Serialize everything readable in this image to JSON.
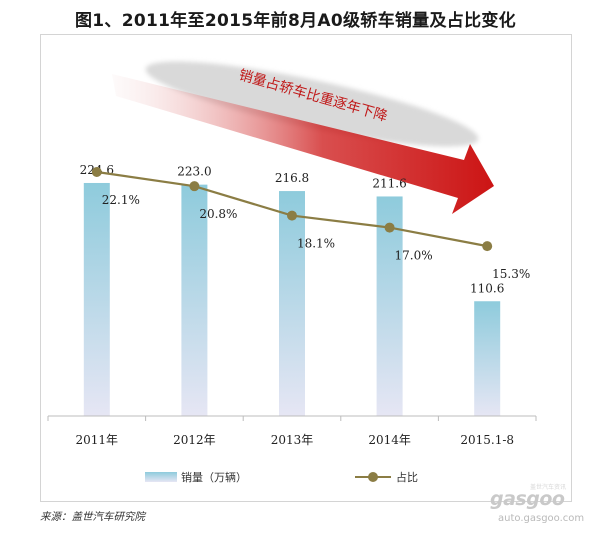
{
  "title": "图1、2011年至2015年前8月A0级轿车销量及占比变化",
  "source": "来源：盖世汽车研究院",
  "watermark": {
    "brand": "gasgoo",
    "url": "auto.gasgoo.com",
    "cn": "盖世汽车资讯"
  },
  "colors": {
    "bar_top": "#8ecbdc",
    "bar_bottom": "#e6e6f4",
    "line": "#8b7d44",
    "arrow_start": "#f4dede",
    "arrow_end": "#cc1414",
    "ellipse": "#d9d9d9"
  },
  "chart_data": {
    "type": "bar+line",
    "categories": [
      "2011年",
      "2012年",
      "2013年",
      "2014年",
      "2015.1-8"
    ],
    "series": [
      {
        "name": "销量（万辆）",
        "type": "bar",
        "values": [
          224.6,
          223.0,
          216.8,
          211.6,
          110.6
        ],
        "labels": [
          "224.6",
          "223.0",
          "216.8",
          "211.6",
          "110.6"
        ]
      },
      {
        "name": "占比",
        "type": "line",
        "values": [
          22.1,
          20.8,
          18.1,
          17.0,
          15.3
        ],
        "labels": [
          "22.1%",
          "20.8%",
          "18.1%",
          "17.0%",
          "15.3%"
        ]
      }
    ],
    "annotation": "销量占轿车比重逐年下降",
    "legend_position": "bottom",
    "grid": false
  }
}
